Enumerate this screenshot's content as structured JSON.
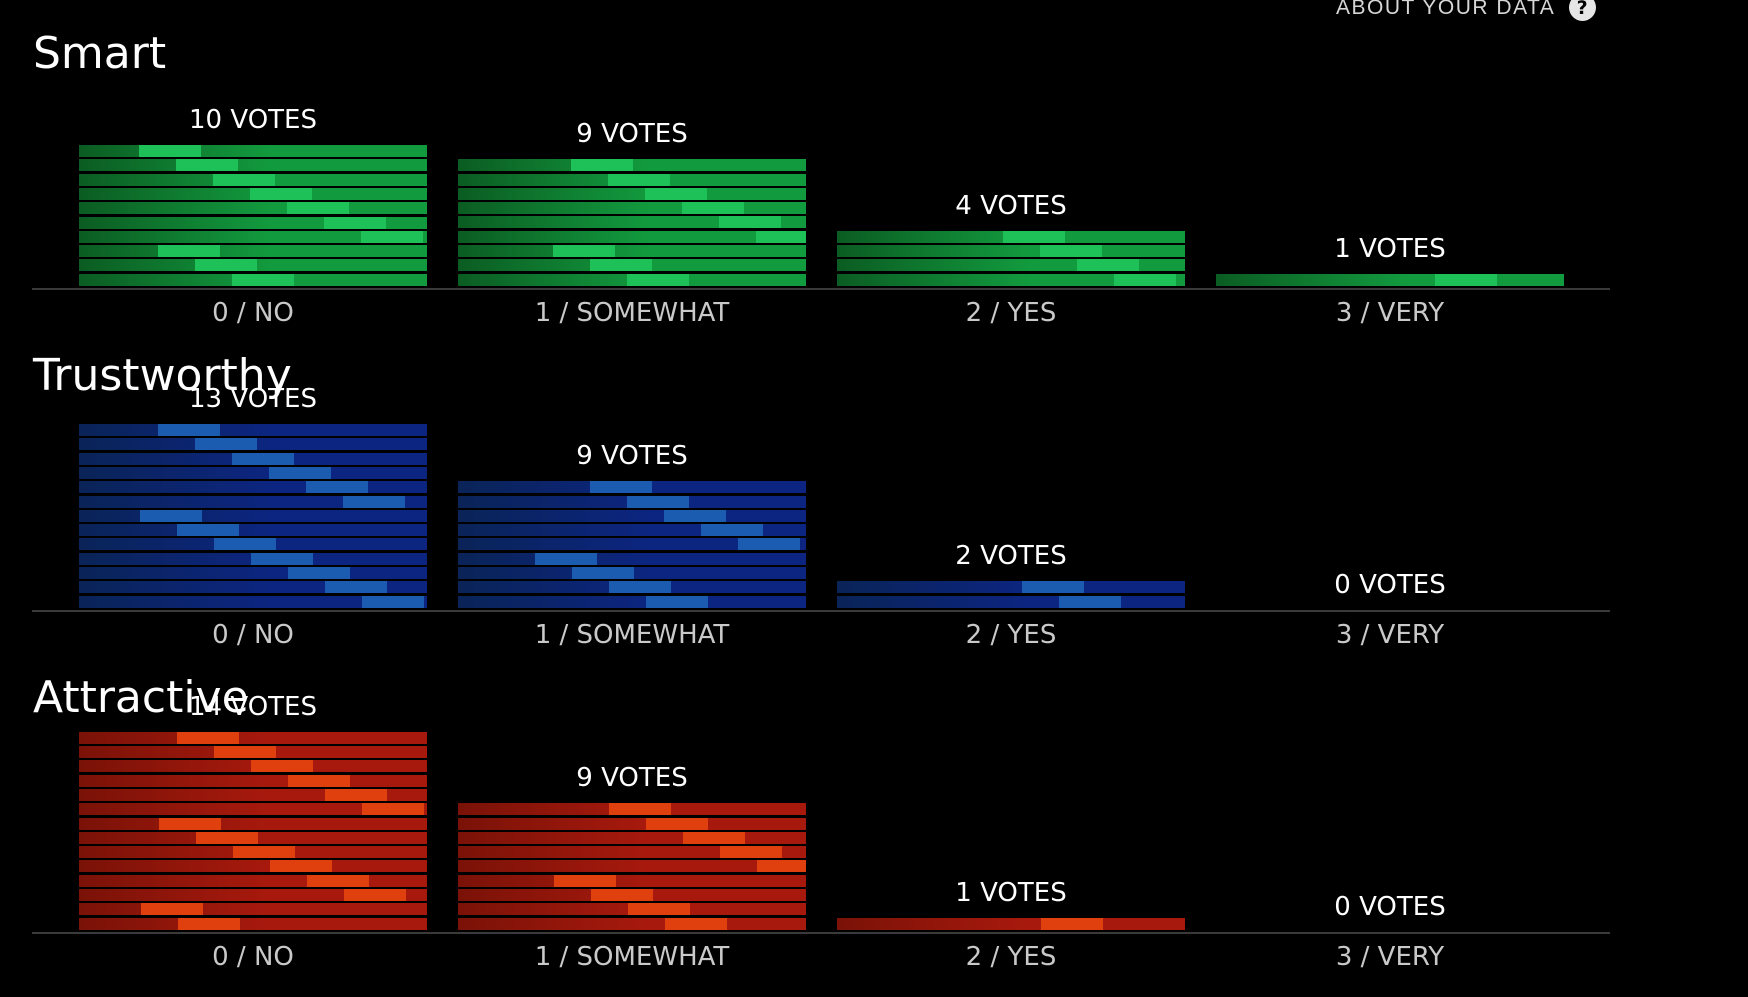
{
  "header": {
    "about_label": "ABOUT YOUR DATA",
    "help_icon": "question-circle-icon"
  },
  "colors": {
    "green": [
      "#0b5c22",
      "#129a3e",
      "#1ec157"
    ],
    "blue": [
      "#0a2458",
      "#0c2580",
      "#1b5cb0"
    ],
    "red": [
      "#7a1208",
      "#a8190d",
      "#e0400e"
    ]
  },
  "chart_data": [
    {
      "type": "bar",
      "title": "Smart",
      "categories": [
        "0 / NO",
        "1 / SOMEWHAT",
        "2 / YES",
        "3 / VERY"
      ],
      "values": [
        10,
        9,
        4,
        1
      ],
      "vote_labels": [
        "10 VOTES",
        "9 VOTES",
        "4 VOTES",
        "1 VOTES"
      ],
      "color": "green"
    },
    {
      "type": "bar",
      "title": "Trustworthy",
      "categories": [
        "0 / NO",
        "1 / SOMEWHAT",
        "2 / YES",
        "3 / VERY"
      ],
      "values": [
        13,
        9,
        2,
        0
      ],
      "vote_labels": [
        "13 VOTES",
        "9 VOTES",
        "2 VOTES",
        "0 VOTES"
      ],
      "color": "blue"
    },
    {
      "type": "bar",
      "title": "Attractive",
      "categories": [
        "0 / NO",
        "1 / SOMEWHAT",
        "2 / YES",
        "3 / VERY"
      ],
      "values": [
        14,
        9,
        1,
        0
      ],
      "vote_labels": [
        "14 VOTES",
        "9 VOTES",
        "1 VOTES",
        "0 VOTES"
      ],
      "color": "red"
    }
  ]
}
